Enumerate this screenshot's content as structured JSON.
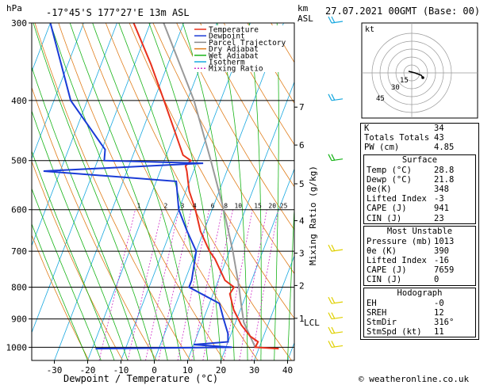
{
  "header": {
    "pressure_unit": "hPa",
    "location": "-17°45'S  177°27'E  13m  ASL",
    "height_unit_top": "km",
    "height_unit_bottom": "ASL",
    "datetime": "27.07.2021  00GMT  (Base: 00)"
  },
  "chart_data": {
    "type": "skew-t",
    "xlabel": "Dewpoint / Temperature (°C)",
    "ylabel": "hPa",
    "right_ylabel": "Mixing Ratio (g/kg)",
    "x_ticks": [
      -30,
      -20,
      -10,
      0,
      10,
      20,
      30,
      40
    ],
    "pressure_levels": [
      300,
      400,
      500,
      600,
      700,
      800,
      900,
      1000
    ],
    "height_km_ticks": [
      {
        "label": "7",
        "p": 410
      },
      {
        "label": "6",
        "p": 472
      },
      {
        "label": "5",
        "p": 545
      },
      {
        "label": "4",
        "p": 625
      },
      {
        "label": "3",
        "p": 705
      },
      {
        "label": "2",
        "p": 795
      },
      {
        "label": "1",
        "p": 898
      },
      {
        "label": "LCL",
        "p": 912
      }
    ],
    "mixing_ratio_labels": [
      "1",
      "2",
      "3",
      "4",
      "6",
      "8",
      "10",
      "15",
      "20",
      "25"
    ],
    "mixing_ratio_values": [
      1,
      2,
      3,
      4,
      6,
      8,
      10,
      15,
      20,
      25
    ],
    "legend": [
      {
        "name": "Temperature",
        "color": "#e8301c",
        "dash": ""
      },
      {
        "name": "Dewpoint",
        "color": "#1a3bd6",
        "dash": ""
      },
      {
        "name": "Parcel Trajectory",
        "color": "#888888",
        "dash": ""
      },
      {
        "name": "Dry Adiabat",
        "color": "#e07d1a",
        "dash": ""
      },
      {
        "name": "Wet Adiabat",
        "color": "#18b418",
        "dash": ""
      },
      {
        "name": "Isotherm",
        "color": "#18a8e0",
        "dash": ""
      },
      {
        "name": "Mixing Ratio",
        "color": "#d030c8",
        "dash": "2,2"
      }
    ],
    "temperature": [
      {
        "p": 1005,
        "t": 36
      },
      {
        "p": 1000,
        "t": 28.8
      },
      {
        "p": 980,
        "t": 29
      },
      {
        "p": 960,
        "t": 26
      },
      {
        "p": 920,
        "t": 22
      },
      {
        "p": 870,
        "t": 18
      },
      {
        "p": 820,
        "t": 15
      },
      {
        "p": 800,
        "t": 15.5
      },
      {
        "p": 780,
        "t": 12
      },
      {
        "p": 720,
        "t": 6.5
      },
      {
        "p": 700,
        "t": 4
      },
      {
        "p": 650,
        "t": -1
      },
      {
        "p": 600,
        "t": -5
      },
      {
        "p": 560,
        "t": -9
      },
      {
        "p": 520,
        "t": -12
      },
      {
        "p": 510,
        "t": -13
      },
      {
        "p": 500,
        "t": -12
      },
      {
        "p": 490,
        "t": -15
      },
      {
        "p": 450,
        "t": -20
      },
      {
        "p": 400,
        "t": -27
      },
      {
        "p": 350,
        "t": -35
      },
      {
        "p": 300,
        "t": -45
      }
    ],
    "dewpoint": [
      {
        "p": 1005,
        "t": -19
      },
      {
        "p": 1000,
        "t": 21.8
      },
      {
        "p": 990,
        "t": 10
      },
      {
        "p": 980,
        "t": 20
      },
      {
        "p": 950,
        "t": 19
      },
      {
        "p": 900,
        "t": 16
      },
      {
        "p": 850,
        "t": 13
      },
      {
        "p": 800,
        "t": 2
      },
      {
        "p": 780,
        "t": 2
      },
      {
        "p": 700,
        "t": 0
      },
      {
        "p": 650,
        "t": -5
      },
      {
        "p": 600,
        "t": -10
      },
      {
        "p": 540,
        "t": -14
      },
      {
        "p": 520,
        "t": -55
      },
      {
        "p": 505,
        "t": -8
      },
      {
        "p": 500,
        "t": -38
      },
      {
        "p": 480,
        "t": -39
      },
      {
        "p": 400,
        "t": -55
      },
      {
        "p": 300,
        "t": -70
      }
    ],
    "parcel": [
      {
        "p": 1000,
        "t": 28.8
      },
      {
        "p": 912,
        "t": 22.5
      },
      {
        "p": 850,
        "t": 19.5
      },
      {
        "p": 800,
        "t": 17
      },
      {
        "p": 700,
        "t": 11
      },
      {
        "p": 600,
        "t": 3.5
      },
      {
        "p": 500,
        "t": -6
      },
      {
        "p": 400,
        "t": -18
      },
      {
        "p": 300,
        "t": -36
      }
    ],
    "hodograph": {
      "ring_labels": [
        "15",
        "30",
        "45"
      ]
    }
  },
  "indices": [
    {
      "label": "K",
      "value": "34"
    },
    {
      "label": "Totals Totals",
      "value": "43"
    },
    {
      "label": "PW (cm)",
      "value": "4.85"
    }
  ],
  "surface": {
    "title": "Surface",
    "rows": [
      {
        "label": "Temp (°C)",
        "value": "28.8"
      },
      {
        "label": "Dewp (°C)",
        "value": "21.8"
      },
      {
        "label": "θe(K)",
        "value": "348"
      },
      {
        "label": "Lifted Index",
        "value": "-3"
      },
      {
        "label": "CAPE (J)",
        "value": "941"
      },
      {
        "label": "CIN (J)",
        "value": "23"
      }
    ]
  },
  "most_unstable": {
    "title": "Most Unstable",
    "rows": [
      {
        "label": "Pressure (mb)",
        "value": "1013"
      },
      {
        "label": "θe (K)",
        "value": "390"
      },
      {
        "label": "Lifted Index",
        "value": "-16"
      },
      {
        "label": "CAPE (J)",
        "value": "7659"
      },
      {
        "label": "CIN (J)",
        "value": "0"
      }
    ]
  },
  "hodograph_table": {
    "title": "Hodograph",
    "rows": [
      {
        "label": "EH",
        "value": "-0"
      },
      {
        "label": "SREH",
        "value": "12"
      },
      {
        "label": "StmDir",
        "value": "316°"
      },
      {
        "label": "StmSpd (kt)",
        "value": "11"
      }
    ]
  },
  "footer": "© weatheronline.co.uk",
  "colors": {
    "temperature": "#e8301c",
    "dewpoint": "#1a3bd6",
    "parcel": "#999999",
    "dry": "#e07d1a",
    "wet": "#18b418",
    "isotherm": "#18a8e0",
    "mixing": "#d030c8",
    "wind": "#e0d000",
    "wind_top": "#18a8e0"
  }
}
